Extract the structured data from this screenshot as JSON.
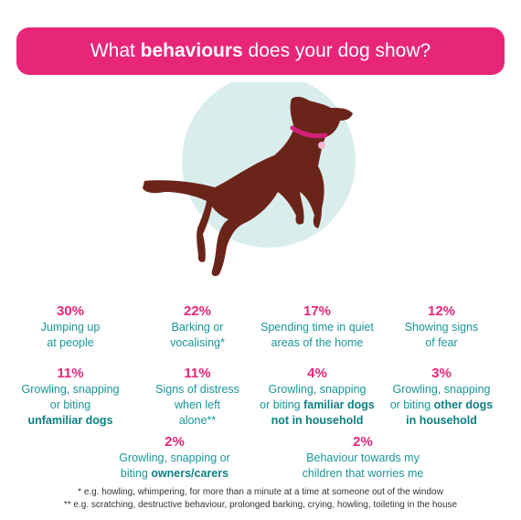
{
  "title": {
    "before": "What ",
    "bold": "behaviours",
    "after": " does your dog show?"
  },
  "colors": {
    "accent_pink": "#e7267a",
    "teal_text": "#1a9598",
    "circle_bg": "#d9eeec",
    "dog_brown": "#6b2419",
    "collar": "#d4217a"
  },
  "illustration": {
    "icon": "dog-jumping-illustration"
  },
  "stats": [
    {
      "pct": "30%",
      "line1": "Jumping up",
      "line2": "at people"
    },
    {
      "pct": "22%",
      "line1": "Barking or",
      "line2": "vocalising*"
    },
    {
      "pct": "17%",
      "line1": "Spending time in quiet",
      "line2": "areas of the home"
    },
    {
      "pct": "12%",
      "line1": "Showing signs",
      "line2": "of fear"
    },
    {
      "pct": "11%",
      "line1": "Growling, snapping",
      "line2": "or biting",
      "bold3": "unfamiliar dogs"
    },
    {
      "pct": "11%",
      "line1": "Signs of distress",
      "line2": "when left",
      "line3": "alone**"
    },
    {
      "pct": "4%",
      "line1": "Growling, snapping",
      "line2": "or biting ",
      "bold2": "familiar dogs",
      "bold3": "not in household"
    },
    {
      "pct": "3%",
      "line1": "Growling, snapping",
      "line2": "or biting ",
      "bold2": "other dogs",
      "bold3": "in household"
    },
    {
      "pct": "2%",
      "line1": "Growling, snapping or",
      "line2": "biting ",
      "bold2": "owners/carers"
    },
    {
      "pct": "2%",
      "line1": "Behaviour towards my",
      "line2": "children that worries me"
    }
  ],
  "footnotes": [
    "* e.g. howling, whimpering, for more than a minute at a time at someone out of the window",
    "** e.g. scratching, destructive behaviour, prolonged barking, crying, howling, toileting in the house"
  ]
}
